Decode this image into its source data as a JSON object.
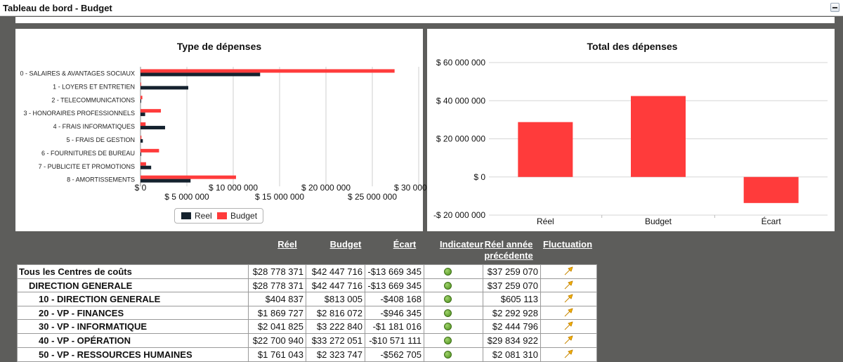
{
  "window": {
    "title": "Tableau de bord - Budget"
  },
  "left_chart": {
    "chart_data": {
      "type": "bar",
      "orientation": "horizontal",
      "title": "Type de dépenses",
      "categories": [
        "0 - SALAIRES & AVANTAGES SOCIAUX",
        "1 - LOYERS ET ENTRETIEN",
        "2 - TELECOMMUNICATIONS",
        "3 - HONORAIRES PROFESSIONNELS",
        "4 - FRAIS INFORMATIQUES",
        "5 - FRAIS DE GESTION",
        "6 - FOURNITURES DE BUREAU",
        "7 - PUBLICITE ET PROMOTIONS",
        "8 - AMORTISSEMENTS"
      ],
      "series": [
        {
          "name": "Reel",
          "color": "#15222e",
          "values": [
            12900000,
            5150000,
            50000,
            500000,
            2650000,
            250000,
            80000,
            1150000,
            5400000
          ]
        },
        {
          "name": "Budget",
          "color": "#ff3b3b",
          "values": [
            27400000,
            50000,
            200000,
            2200000,
            550000,
            100000,
            2000000,
            600000,
            10300000
          ]
        }
      ],
      "xlim": [
        0,
        30000000
      ],
      "ticks_upper": [
        "$ 0",
        "$ 10 000 000",
        "$ 20 000 000",
        "$ 30 000 000"
      ],
      "ticks_lower": [
        "$ 0",
        "$ 5 000 000",
        "$ 15 000 000",
        "$ 25 000 000"
      ],
      "ticks_upper_values": [
        0,
        10000000,
        20000000,
        30000000
      ],
      "ticks_lower_values": [
        0,
        5000000,
        15000000,
        25000000
      ],
      "grid": true,
      "legend": "bottom"
    }
  },
  "right_chart": {
    "chart_data": {
      "type": "bar",
      "title": "Total des dépenses",
      "categories": [
        "Réel",
        "Budget",
        "Écart"
      ],
      "values": [
        28778371,
        42447716,
        -13669345
      ],
      "color": "#ff3b3b",
      "ylim": [
        -20000000,
        60000000
      ],
      "ticks": [
        "$ 60 000 000",
        "$ 40 000 000",
        "$ 20 000 000",
        "$ 0",
        "-$ 20 000 000"
      ],
      "tick_values": [
        60000000,
        40000000,
        20000000,
        0,
        -20000000
      ],
      "grid": true
    }
  },
  "table": {
    "headers": [
      "Réel",
      "Budget",
      "Écart",
      "Indicateur",
      "Réel année précédente",
      "Fluctuation"
    ],
    "rows": [
      {
        "name": "Tous les Centres de coûts",
        "reel": "$28 778 371",
        "budget": "$42 447 716",
        "ecart": "-$13 669 345",
        "indicateur": "green-dot-icon",
        "prec": "$37 259 070",
        "fluct": "up-arrow-icon"
      },
      {
        "name": "DIRECTION GENERALE",
        "reel": "$28 778 371",
        "budget": "$42 447 716",
        "ecart": "-$13 669 345",
        "indicateur": "green-dot-icon",
        "prec": "$37 259 070",
        "fluct": "up-arrow-icon"
      },
      {
        "name": "10 - DIRECTION GENERALE",
        "reel": "$404 837",
        "budget": "$813 005",
        "ecart": "-$408 168",
        "indicateur": "green-dot-icon",
        "prec": "$605 113",
        "fluct": "up-arrow-icon"
      },
      {
        "name": "20 - VP - FINANCES",
        "reel": "$1 869 727",
        "budget": "$2 816 072",
        "ecart": "-$946 345",
        "indicateur": "green-dot-icon",
        "prec": "$2 292 928",
        "fluct": "up-arrow-icon"
      },
      {
        "name": "30 - VP - INFORMATIQUE",
        "reel": "$2 041 825",
        "budget": "$3 222 840",
        "ecart": "-$1 181 016",
        "indicateur": "green-dot-icon",
        "prec": "$2 444 796",
        "fluct": "up-arrow-icon"
      },
      {
        "name": "40 - VP - OPÉRATION",
        "reel": "$22 700 940",
        "budget": "$33 272 051",
        "ecart": "-$10 571 111",
        "indicateur": "green-dot-icon",
        "prec": "$29 834 922",
        "fluct": "up-arrow-icon"
      },
      {
        "name": "50 - VP - RESSOURCES HUMAINES",
        "reel": "$1 761 043",
        "budget": "$2 323 747",
        "ecart": "-$562 705",
        "indicateur": "green-dot-icon",
        "prec": "$2 081 310",
        "fluct": "up-arrow-icon"
      }
    ]
  }
}
